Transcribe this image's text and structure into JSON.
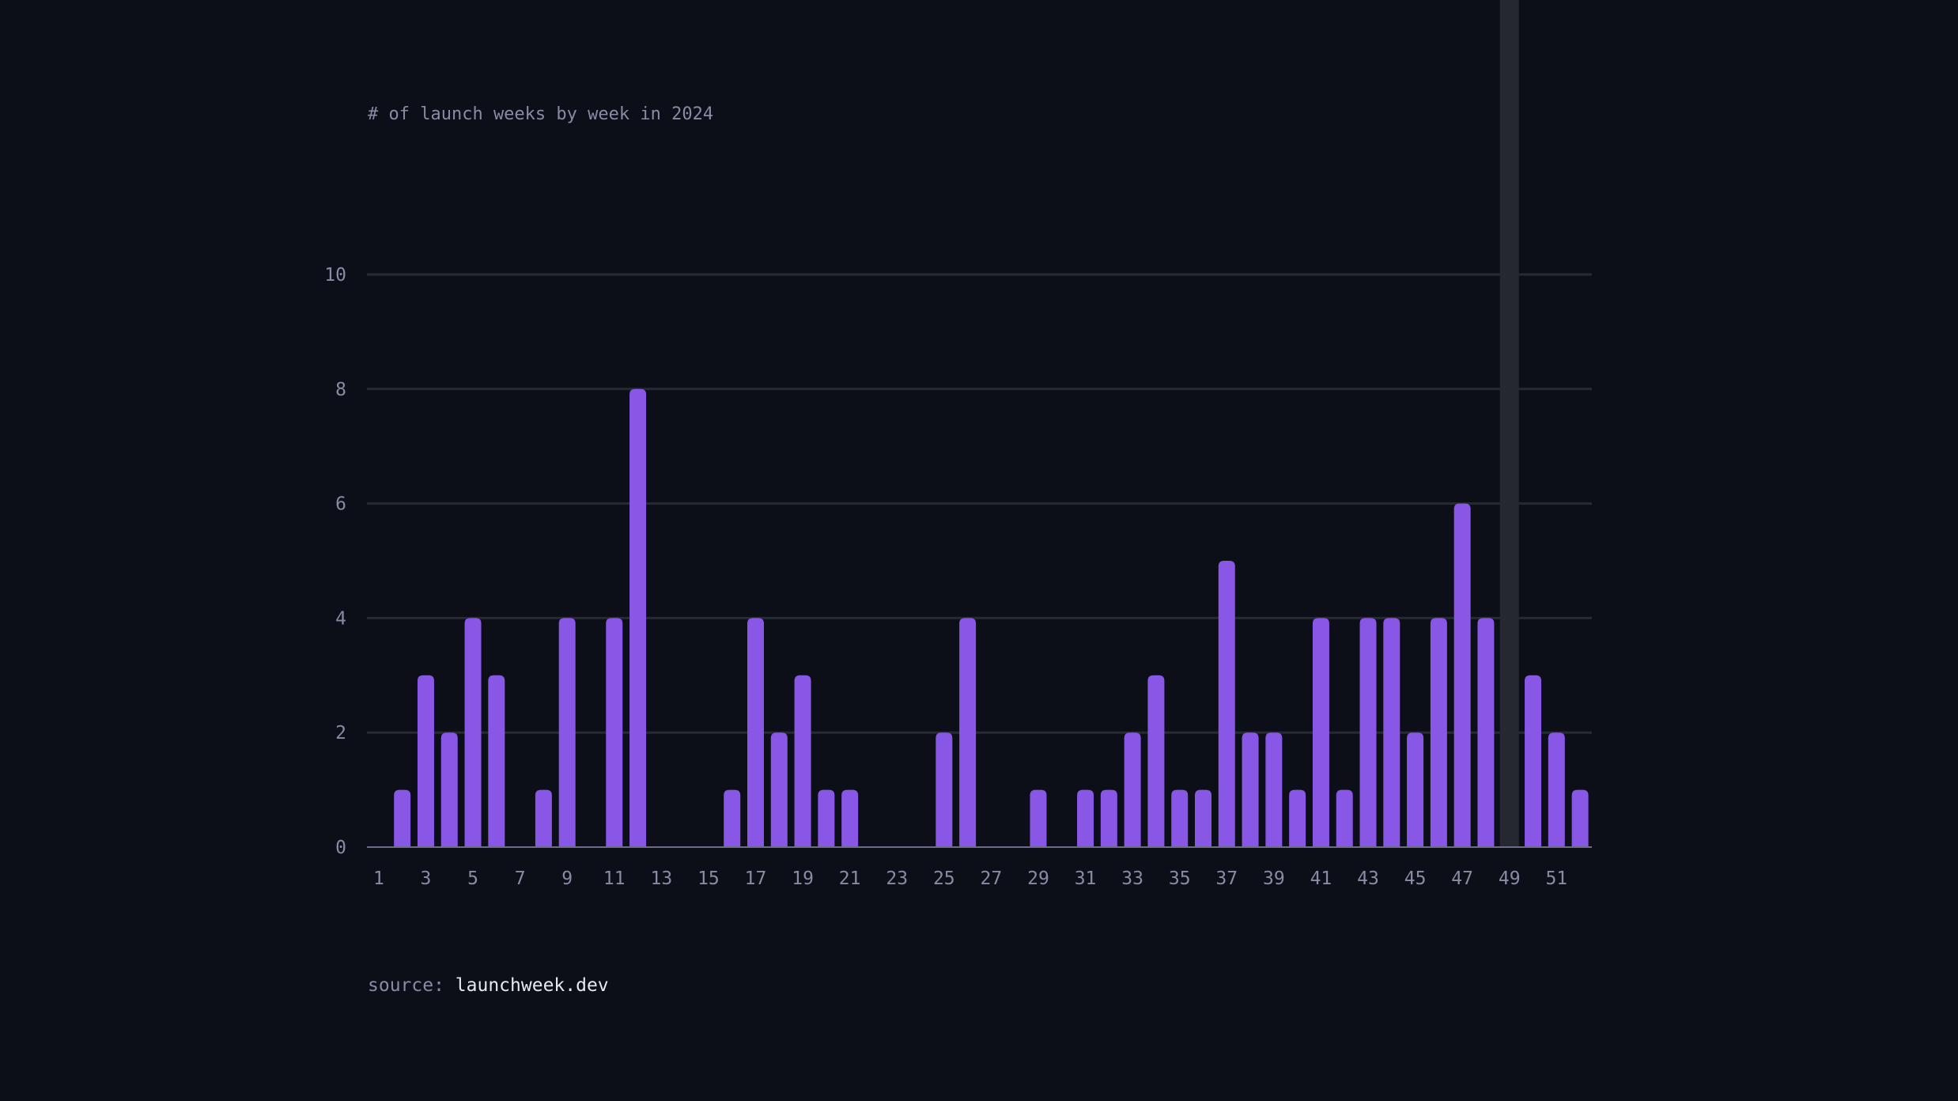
{
  "chart_data": {
    "type": "bar",
    "title": "# of launch weeks by week in 2024",
    "xlabel": "",
    "ylabel": "",
    "categories": [
      1,
      2,
      3,
      4,
      5,
      6,
      7,
      8,
      9,
      10,
      11,
      12,
      13,
      14,
      15,
      16,
      17,
      18,
      19,
      20,
      21,
      22,
      23,
      24,
      25,
      26,
      27,
      28,
      29,
      30,
      31,
      32,
      33,
      34,
      35,
      36,
      37,
      38,
      39,
      40,
      41,
      42,
      43,
      44,
      45,
      46,
      47,
      48,
      49,
      50,
      51,
      52
    ],
    "values": [
      0,
      1,
      3,
      2,
      4,
      3,
      0,
      1,
      4,
      0,
      4,
      8,
      0,
      0,
      0,
      1,
      4,
      2,
      3,
      1,
      1,
      0,
      0,
      0,
      2,
      4,
      0,
      0,
      1,
      0,
      1,
      1,
      2,
      3,
      1,
      1,
      5,
      2,
      2,
      1,
      4,
      1,
      4,
      4,
      2,
      4,
      6,
      4,
      0,
      3,
      2,
      1
    ],
    "ylim": [
      0,
      10
    ],
    "yticks": [
      0,
      2,
      4,
      6,
      8,
      10
    ],
    "xticks": [
      1,
      3,
      5,
      7,
      9,
      11,
      13,
      15,
      17,
      19,
      21,
      23,
      25,
      27,
      29,
      31,
      33,
      35,
      37,
      39,
      41,
      43,
      45,
      47,
      49,
      51
    ],
    "highlight_week": 49,
    "grid": true,
    "bar_color": "#8957e5",
    "highlight_color": "#25282f",
    "grid_color": "#262a33",
    "axis_color": "#6e6a8a"
  },
  "source": {
    "label": "source:",
    "link": "launchweek.dev"
  }
}
